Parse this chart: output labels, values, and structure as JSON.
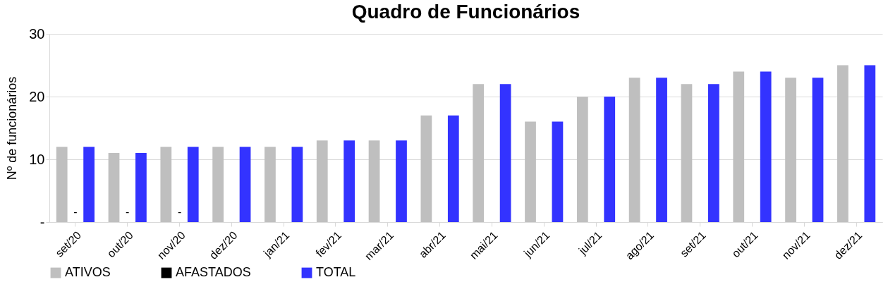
{
  "chart_data": {
    "type": "bar",
    "title": "Quadro de Funcionários",
    "ylabel": "Nº de funcionários",
    "categories": [
      "set/20",
      "out/20",
      "nov/20",
      "dez/20",
      "jan/21",
      "fev/21",
      "mar/21",
      "abr/21",
      "mai/21",
      "jun/21",
      "jul/21",
      "ago/21",
      "set/21",
      "out/21",
      "nov/21",
      "dez/21"
    ],
    "series": [
      {
        "name": "ATIVOS",
        "color": "#bfbfbf",
        "values": [
          12,
          11,
          12,
          12,
          12,
          13,
          13,
          17,
          22,
          16,
          20,
          23,
          22,
          24,
          23,
          25
        ]
      },
      {
        "name": "AFASTADOS",
        "color": "#000000",
        "values": [
          0,
          0,
          0,
          null,
          null,
          null,
          null,
          null,
          null,
          null,
          null,
          null,
          null,
          null,
          null,
          null
        ],
        "value_labels": [
          "-",
          "-",
          "-",
          null,
          null,
          null,
          null,
          null,
          null,
          null,
          null,
          null,
          null,
          null,
          null,
          null
        ]
      },
      {
        "name": "TOTAL",
        "color": "#3333ff",
        "values": [
          12,
          11,
          12,
          12,
          12,
          13,
          13,
          17,
          22,
          16,
          20,
          23,
          22,
          24,
          23,
          25
        ]
      }
    ],
    "ylim": [
      0,
      30
    ],
    "yticks": [
      {
        "value": 0,
        "label": "-"
      },
      10,
      20,
      30
    ],
    "grid": "y",
    "legend": "bottom"
  }
}
